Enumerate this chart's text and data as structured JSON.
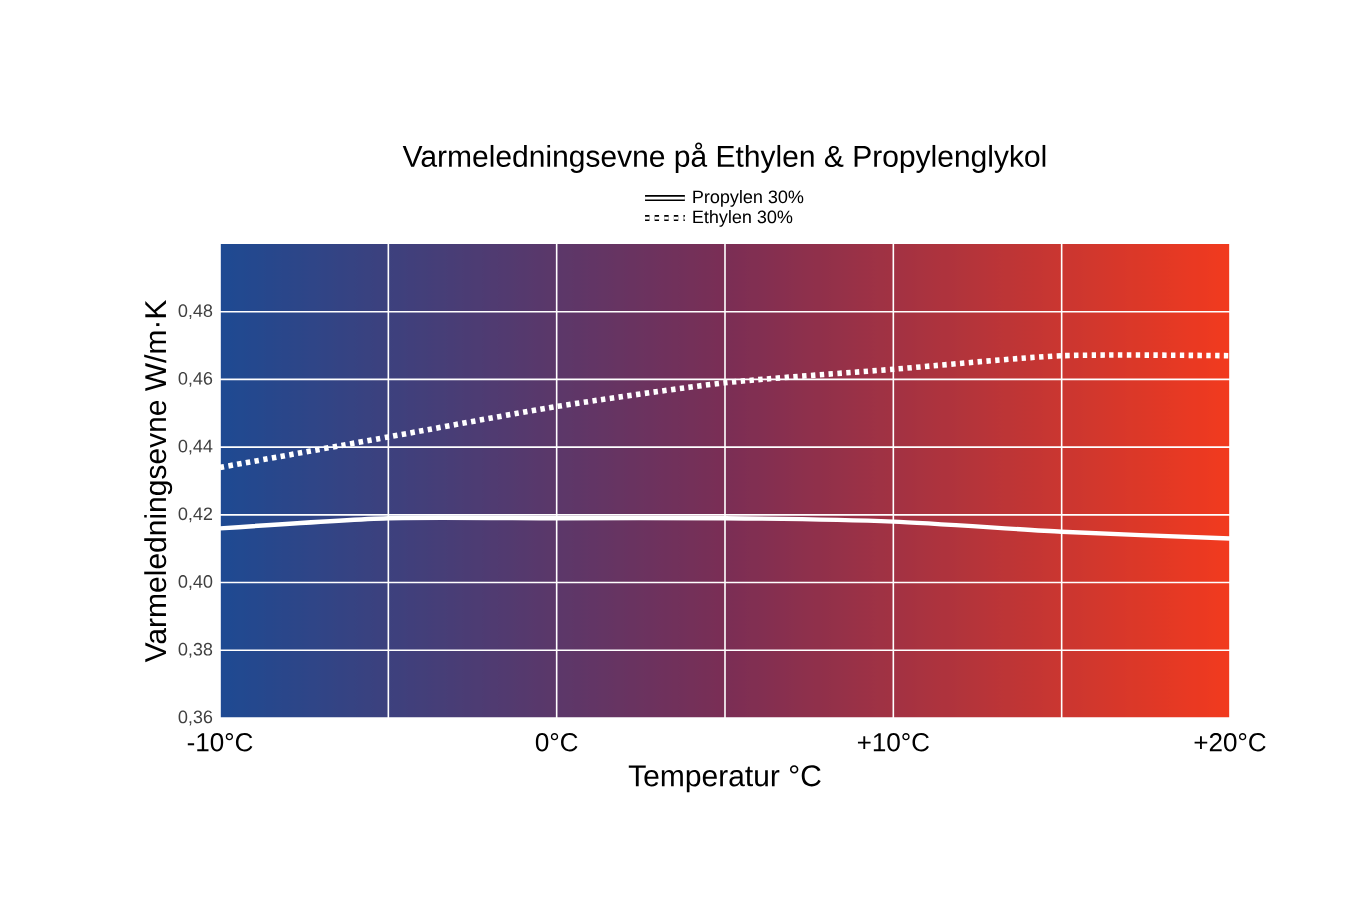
{
  "chart_data": {
    "type": "line",
    "title": "Varmeledningsevne på Ethylen & Propylenglykol",
    "xlabel": "Temperatur °C",
    "ylabel": "Varmeledningsevne W/m·K",
    "x": [
      -10,
      -5,
      0,
      5,
      10,
      15,
      20
    ],
    "series": [
      {
        "name": "Propylen 30%",
        "color": "#ffffff",
        "line_style": "solid",
        "values": [
          0.416,
          0.419,
          0.419,
          0.419,
          0.418,
          0.415,
          0.413
        ]
      },
      {
        "name": "Ethylen 30%",
        "color": "#ffffff",
        "line_style": "dotted",
        "values": [
          0.434,
          0.443,
          0.452,
          0.459,
          0.463,
          0.467,
          0.467
        ]
      }
    ],
    "xlim": [
      -10,
      20
    ],
    "ylim": [
      0.36,
      0.5
    ],
    "xticks": [
      {
        "value": -10,
        "label": "-10°C"
      },
      {
        "value": -5,
        "label": null
      },
      {
        "value": 0,
        "label": "0°C"
      },
      {
        "value": 5,
        "label": null
      },
      {
        "value": 10,
        "label": "+10°C"
      },
      {
        "value": 15,
        "label": null
      },
      {
        "value": 20,
        "label": "+20°C"
      }
    ],
    "yticks": [
      {
        "value": 0.36,
        "label": "0,36"
      },
      {
        "value": 0.38,
        "label": "0,38"
      },
      {
        "value": 0.4,
        "label": "0,40"
      },
      {
        "value": 0.42,
        "label": "0,42"
      },
      {
        "value": 0.44,
        "label": "0,44"
      },
      {
        "value": 0.46,
        "label": "0,46"
      },
      {
        "value": 0.48,
        "label": "0,48"
      }
    ],
    "grid": true,
    "legend": "top",
    "marker": "none"
  }
}
